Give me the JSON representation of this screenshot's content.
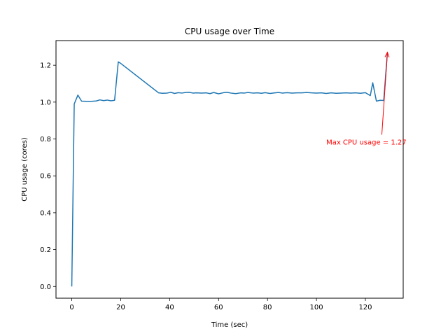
{
  "chart_data": {
    "type": "line",
    "title": "CPU usage over Time",
    "xlabel": "Time (sec)",
    "ylabel": "CPU usage (cores)",
    "xlim": [
      -6.45,
      135.45
    ],
    "ylim": [
      -0.0635,
      1.3335
    ],
    "xticks": [
      0,
      20,
      40,
      60,
      80,
      100,
      120
    ],
    "yticks": [
      0.0,
      0.2,
      0.4,
      0.6,
      0.8,
      1.0,
      1.2
    ],
    "xtick_labels": [
      "0",
      "20",
      "40",
      "60",
      "80",
      "100",
      "120"
    ],
    "ytick_labels": [
      "0.0",
      "0.2",
      "0.4",
      "0.6",
      "0.8",
      "1.0",
      "1.2"
    ],
    "grid": false,
    "line_color": "#1f77b4",
    "annotation_color": "#ff0000",
    "series": [
      {
        "x": [
          0,
          1,
          2.5,
          4,
          6,
          8,
          10,
          11.5,
          13,
          14.5,
          16,
          17.5,
          19,
          20,
          35.5,
          37,
          39,
          40.5,
          42,
          43.5,
          45,
          46.5,
          48,
          49.5,
          51,
          53,
          55,
          56.5,
          58,
          60,
          62,
          63.5,
          65,
          67,
          69,
          70.5,
          72,
          74,
          76,
          77.5,
          79,
          81,
          83,
          84.5,
          86,
          88,
          90,
          92,
          94,
          96,
          98,
          100,
          102,
          104,
          106,
          108,
          110,
          112,
          114,
          116,
          118,
          120,
          122,
          123,
          124.5,
          126,
          127.5,
          129
        ],
        "y": [
          0.0,
          0.99,
          1.038,
          1.005,
          1.004,
          1.004,
          1.006,
          1.012,
          1.008,
          1.011,
          1.007,
          1.01,
          1.218,
          1.21,
          1.05,
          1.048,
          1.049,
          1.053,
          1.047,
          1.051,
          1.049,
          1.052,
          1.053,
          1.049,
          1.05,
          1.049,
          1.05,
          1.046,
          1.052,
          1.045,
          1.051,
          1.053,
          1.049,
          1.046,
          1.05,
          1.049,
          1.052,
          1.049,
          1.05,
          1.048,
          1.051,
          1.047,
          1.05,
          1.052,
          1.049,
          1.051,
          1.049,
          1.05,
          1.05,
          1.052,
          1.05,
          1.049,
          1.05,
          1.047,
          1.05,
          1.048,
          1.049,
          1.05,
          1.049,
          1.05,
          1.048,
          1.051,
          1.035,
          1.105,
          1.005,
          1.01,
          1.009,
          1.27
        ]
      }
    ],
    "annotation": {
      "text": "Max CPU usage = 1.27",
      "point": [
        129,
        1.27
      ],
      "text_position": [
        104,
        0.77
      ]
    }
  }
}
